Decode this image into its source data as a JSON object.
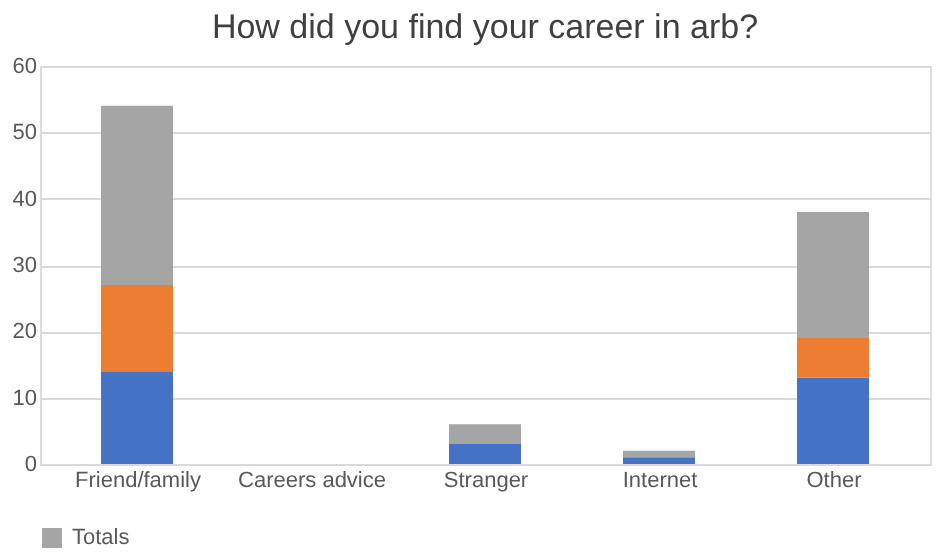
{
  "chart_data": {
    "type": "bar",
    "title": "How did you find your career in arb?",
    "categories": [
      "Friend/family",
      "Careers advice",
      "Stranger",
      "Internet",
      "Other"
    ],
    "stacked": true,
    "series": [
      {
        "color": "#4472c4",
        "values": [
          14,
          0,
          3,
          1,
          13
        ]
      },
      {
        "color": "#ed7d31",
        "values": [
          13,
          0,
          0,
          0,
          6
        ]
      },
      {
        "name": "Totals",
        "color": "#a5a5a5",
        "values": [
          27,
          0,
          3,
          1,
          19
        ]
      }
    ],
    "ylim": [
      0,
      60
    ],
    "yticks": [
      0,
      10,
      20,
      30,
      40,
      50,
      60
    ],
    "grid": "y",
    "legend": "bottom"
  }
}
